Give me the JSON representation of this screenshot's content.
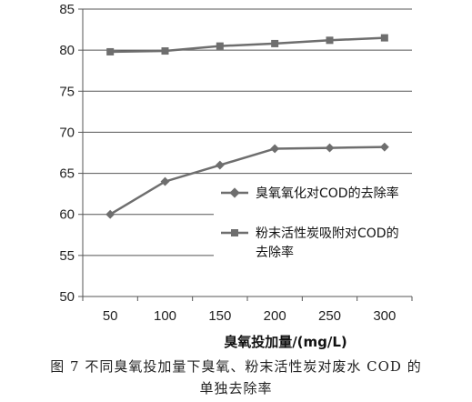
{
  "chart_data": {
    "type": "line",
    "categories": [
      "50",
      "100",
      "150",
      "200",
      "250",
      "300"
    ],
    "series": [
      {
        "name": "臭氧氧化对COD的去除率",
        "marker": "diamond",
        "color": "#6e6e6e",
        "values": [
          60.0,
          64.0,
          66.0,
          68.0,
          68.1,
          68.2
        ]
      },
      {
        "name": "粉末活性炭吸附对COD的",
        "name_line2": "去除率",
        "marker": "square",
        "color": "#6e6e6e",
        "values": [
          79.8,
          79.9,
          80.5,
          80.8,
          81.2,
          81.5
        ]
      }
    ],
    "xlabel": "臭氧投加量/(mg/L)",
    "ylabel": "",
    "ylim": [
      50,
      85
    ],
    "yticks": [
      "50",
      "55",
      "60",
      "65",
      "70",
      "75",
      "80",
      "85"
    ],
    "grid": "horizontal",
    "legend_position": "right-middle"
  },
  "caption": {
    "line1": "图 7   不同臭氧投加量下臭氧、粉末活性炭对废水 COD 的",
    "line2": "单独去除率"
  }
}
